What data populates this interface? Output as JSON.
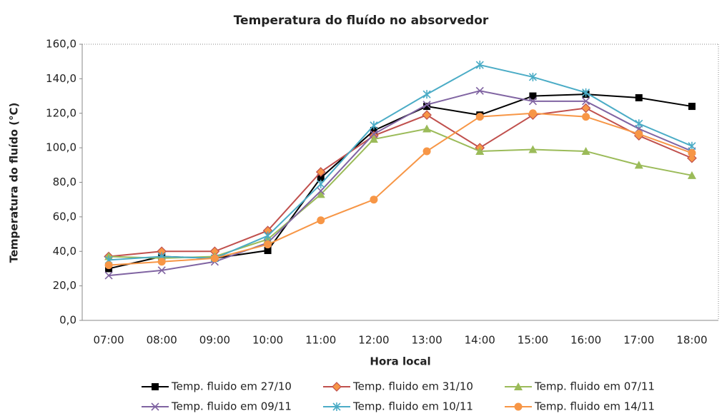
{
  "chart_data": {
    "type": "line",
    "title": "Temperatura do fluído no absorvedor",
    "x_label": "Hora local",
    "y_label": "Temperatura do fluído (°C)",
    "categories": [
      "07:00",
      "08:00",
      "09:00",
      "10:00",
      "11:00",
      "12:00",
      "13:00",
      "14:00",
      "15:00",
      "16:00",
      "17:00",
      "18:00"
    ],
    "ylim": [
      0,
      160
    ],
    "yticks": [
      {
        "value": 0,
        "label": "0,0"
      },
      {
        "value": 20,
        "label": "20,0"
      },
      {
        "value": 40,
        "label": "40,0"
      },
      {
        "value": 60,
        "label": "60,0"
      },
      {
        "value": 80,
        "label": "80,0"
      },
      {
        "value": 100,
        "label": "100,0"
      },
      {
        "value": 120,
        "label": "120,0"
      },
      {
        "value": 140,
        "label": "140,0"
      },
      {
        "value": 160,
        "label": "160,0"
      }
    ],
    "grid": false,
    "legend": "bottom",
    "series": [
      {
        "name": "Temp. fluido em 27/10",
        "color": "#000000",
        "marker": "square",
        "values": [
          30,
          37,
          36,
          40.5,
          82.6,
          110,
          124,
          119,
          130,
          131,
          129,
          124
        ]
      },
      {
        "name": "Temp. fluido em 31/10",
        "color": "#c0504d",
        "marker": "diamond",
        "marker_color": "#f79646",
        "values": [
          37,
          40,
          40,
          52,
          86,
          107,
          119,
          100,
          119,
          123,
          107,
          94
        ]
      },
      {
        "name": "Temp. fluido em 07/11",
        "color": "#9bbb59",
        "marker": "triangle",
        "values": [
          37,
          36,
          37,
          47,
          73,
          105,
          111,
          98,
          99,
          98,
          90,
          84
        ]
      },
      {
        "name": "Temp. fluido em 09/11",
        "color": "#8064a2",
        "marker": "x",
        "values": [
          26,
          29,
          34,
          45,
          75,
          108,
          125,
          133,
          127,
          127,
          111,
          98
        ]
      },
      {
        "name": "Temp. fluido em 10/11",
        "color": "#4bacc6",
        "marker": "star",
        "values": [
          35,
          37,
          36,
          49,
          79,
          113,
          131,
          148,
          141,
          132,
          114,
          101
        ]
      },
      {
        "name": "Temp. fluido em 14/11",
        "color": "#f79646",
        "marker": "circle",
        "values": [
          32,
          34,
          36,
          44,
          58,
          70,
          98,
          118,
          120,
          118,
          108,
          97
        ]
      }
    ]
  }
}
